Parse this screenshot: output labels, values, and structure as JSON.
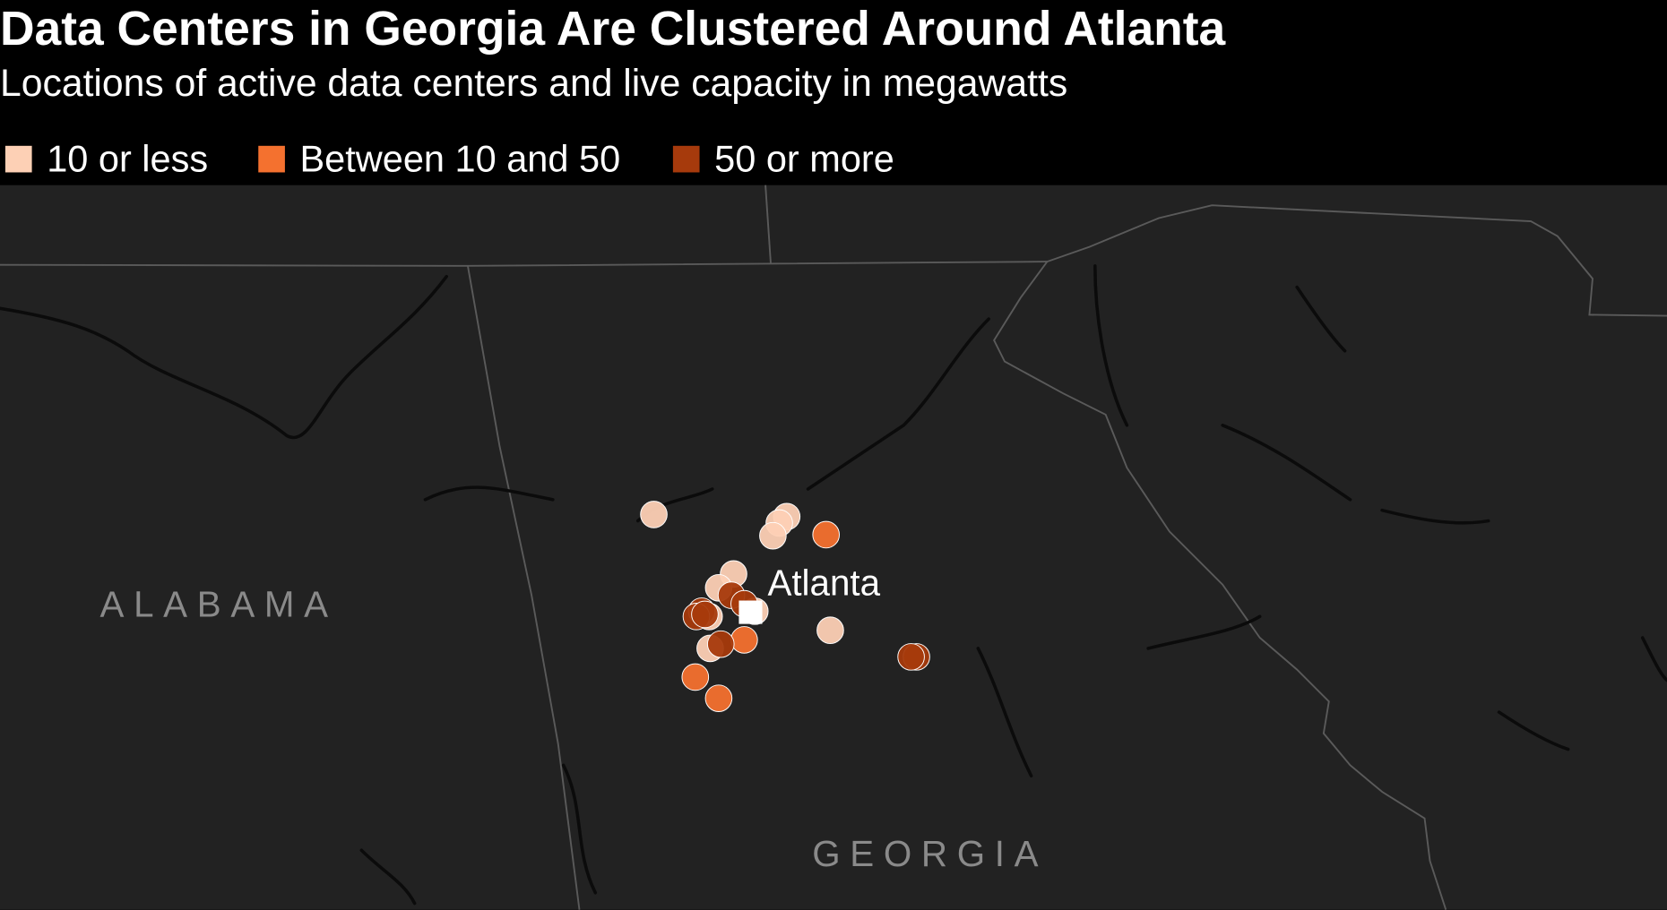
{
  "header": {
    "title": "Data Centers in Georgia Are Clustered Around Atlanta",
    "subtitle": "Locations of active data centers and live capacity in megawatts"
  },
  "legend": [
    {
      "label": "10 or less",
      "color": "#fdd0b5"
    },
    {
      "label": "Between 10 and 50",
      "color": "#f4712f"
    },
    {
      "label": "50 or more",
      "color": "#a63a0c"
    }
  ],
  "map": {
    "city": "Atlanta",
    "states": [
      "ALABAMA",
      "GEORGIA"
    ]
  }
}
